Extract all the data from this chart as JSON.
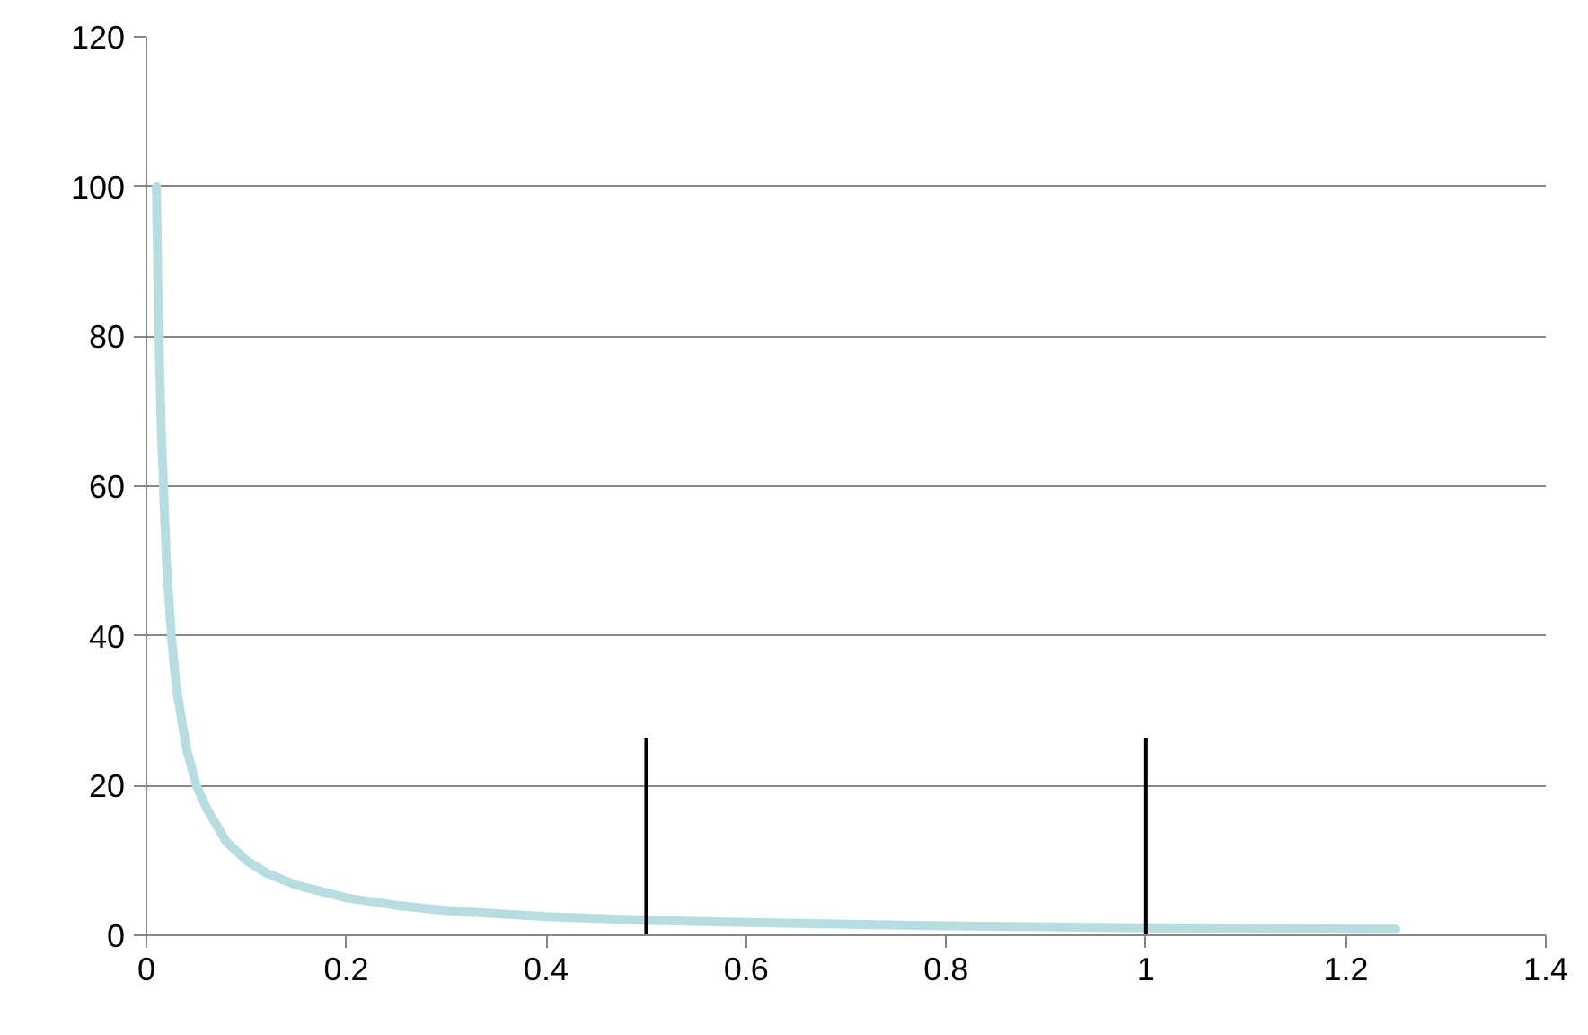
{
  "chart_data": {
    "type": "line",
    "x": [
      0.01,
      0.012,
      0.015,
      0.02,
      0.025,
      0.03,
      0.04,
      0.05,
      0.06,
      0.08,
      0.1,
      0.12,
      0.15,
      0.2,
      0.25,
      0.3,
      0.4,
      0.5,
      0.6,
      0.8,
      1.0,
      1.25
    ],
    "series": [
      {
        "color": "#b7dde0",
        "values": [
          100,
          83,
          67,
          50,
          40,
          33,
          25,
          20,
          17,
          12.5,
          10,
          8.3,
          6.7,
          5,
          4,
          3.3,
          2.5,
          2,
          1.7,
          1.25,
          1,
          0.8
        ]
      }
    ],
    "xlim": [
      0,
      1.4
    ],
    "xticks": [
      0,
      0.2,
      0.4,
      0.6,
      0.8,
      1,
      1.2,
      1.4
    ],
    "ylim": [
      0,
      120
    ],
    "yticks": [
      0,
      20,
      40,
      60,
      80,
      100,
      120
    ],
    "grid": "y",
    "marker": "none",
    "line_style": "solid",
    "ref_lines": [
      {
        "axis": "x",
        "value": 0.5,
        "color": "#000000"
      },
      {
        "axis": "x",
        "value": 1.0,
        "color": "#000000"
      }
    ]
  }
}
